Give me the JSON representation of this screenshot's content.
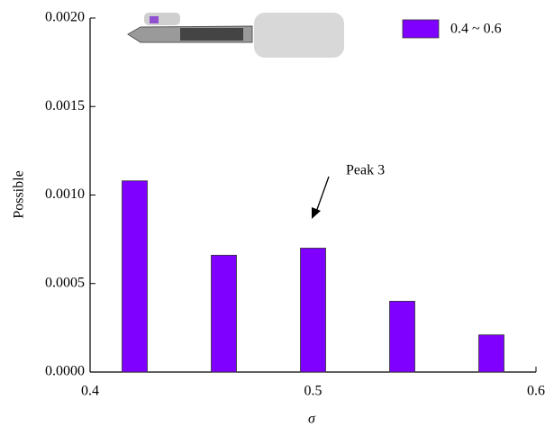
{
  "chart_data": {
    "type": "bar",
    "x": [
      0.42,
      0.46,
      0.5,
      0.54,
      0.58
    ],
    "series": [
      {
        "name": "0.4 ~ 0.6",
        "color": "#7f00ff",
        "values": [
          0.00108,
          0.00066,
          0.0007,
          0.0004,
          0.00021
        ]
      }
    ],
    "xlabel": "σ",
    "ylabel": "Possible",
    "xlim": [
      0.4,
      0.6
    ],
    "xticks": [
      0.4,
      0.5,
      0.6
    ],
    "ylim": [
      0,
      0.002
    ],
    "yticks": [
      {
        "value": 0,
        "label": "0.0000"
      },
      {
        "value": 0.0005,
        "label": "0.0005"
      },
      {
        "value": 0.001,
        "label": "0.0010"
      },
      {
        "value": 0.0015,
        "label": "0.0015"
      },
      {
        "value": 0.002,
        "label": "0.0020"
      }
    ],
    "annotation": "Peak 3",
    "legend": "upper right"
  }
}
